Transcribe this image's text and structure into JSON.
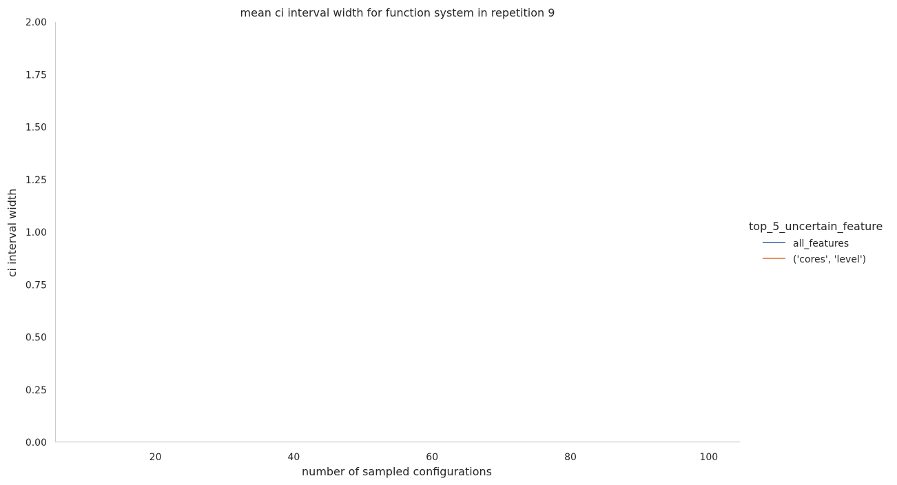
{
  "chart_data": {
    "type": "line",
    "title": "mean ci interval width for function system in repetition 9",
    "xlabel": "number of sampled configurations",
    "ylabel": "ci interval width",
    "xlim": [
      5.5,
      104.5
    ],
    "ylim": [
      0,
      2
    ],
    "x_ticks": [
      20,
      40,
      60,
      80,
      100
    ],
    "x_tick_labels": [
      "20",
      "40",
      "60",
      "80",
      "100"
    ],
    "y_ticks": [
      0,
      0.25,
      0.5,
      0.75,
      1.0,
      1.25,
      1.5,
      1.75,
      2.0
    ],
    "y_tick_labels": [
      "0.00",
      "0.25",
      "0.50",
      "0.75",
      "1.00",
      "1.25",
      "1.50",
      "1.75",
      "2.00"
    ],
    "grid": false,
    "legend": {
      "title": "top_5_uncertain_feature",
      "placement": "right"
    },
    "series": [
      {
        "name": "all_features",
        "color": "#4c72b0",
        "x": [],
        "y": []
      },
      {
        "name": "('cores', 'level')",
        "color": "#dd8452",
        "x": [],
        "y": []
      }
    ]
  }
}
